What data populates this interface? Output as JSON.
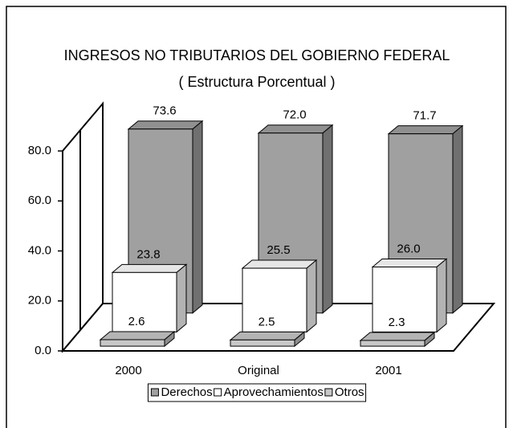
{
  "chart_data": {
    "type": "bar3d",
    "title": "INGRESOS NO TRIBUTARIOS DEL GOBIERNO FEDERAL",
    "subtitle": "( Estructura Porcentual )",
    "categories": [
      "2000",
      "Original",
      "2001"
    ],
    "series": [
      {
        "name": "Derechos",
        "color": "#a0a0a0",
        "values": [
          73.6,
          72,
          71.7
        ],
        "value_labels": [
          "73.6",
          "72.0",
          "71.7"
        ]
      },
      {
        "name": "Aprovechamientos",
        "color": "#ffffff",
        "values": [
          23.8,
          25.5,
          26
        ],
        "value_labels": [
          "23.8",
          "25.5",
          "26.0"
        ]
      },
      {
        "name": "Otros",
        "color": "#c8c8c8",
        "values": [
          2.6,
          2.5,
          2.3
        ],
        "value_labels": [
          "2.6",
          "2.5",
          "2.3"
        ]
      }
    ],
    "ylim": [
      0,
      80
    ],
    "yticks": [
      {
        "value": 0,
        "label": "0.0"
      },
      {
        "value": 20,
        "label": "20.0"
      },
      {
        "value": 40,
        "label": "40.0"
      },
      {
        "value": 60,
        "label": "60.0"
      },
      {
        "value": 80,
        "label": "80.0"
      }
    ],
    "legend": "bottom"
  }
}
